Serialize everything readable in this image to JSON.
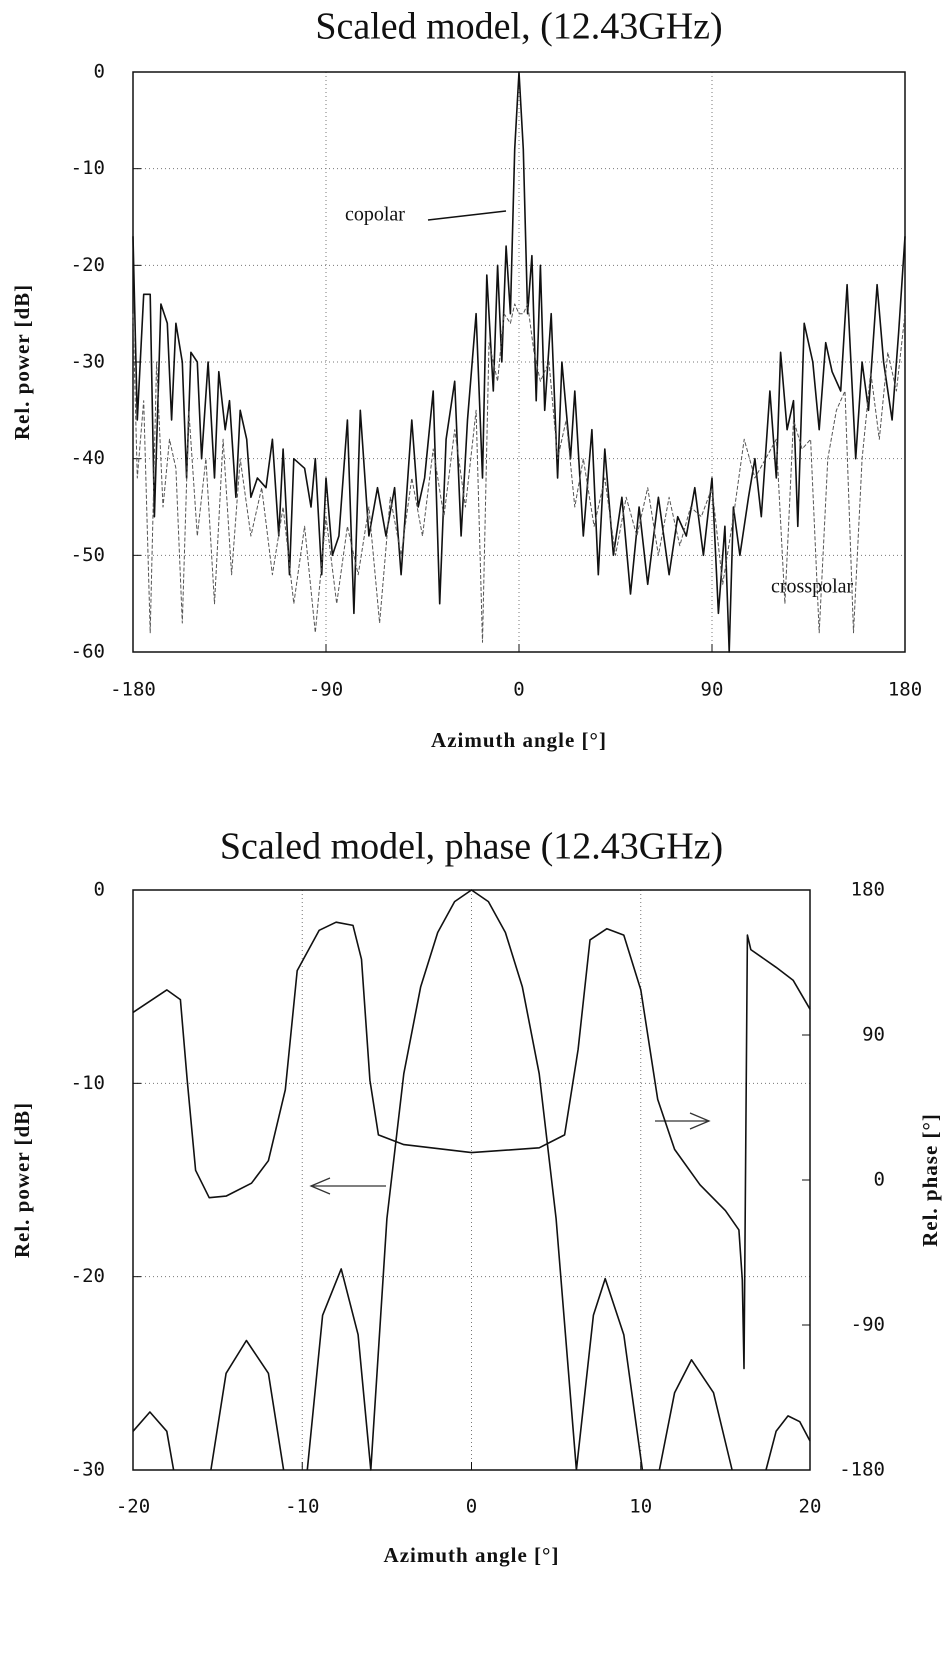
{
  "chart_data": [
    {
      "type": "line",
      "title": "Scaled model,  (12.43GHz)",
      "xlabel": "Azimuth angle [°]",
      "ylabel": "Rel. power [dB]",
      "xlim": [
        -180,
        180
      ],
      "xticks": [
        -180,
        -90,
        0,
        90,
        180
      ],
      "ylim": [
        -60,
        0
      ],
      "yticks": [
        0,
        -10,
        -20,
        -30,
        -40,
        -50,
        -60
      ],
      "grid": true,
      "series": [
        {
          "name": "copolar",
          "color": "#111111",
          "dashed": false,
          "x": [
            -180,
            -178,
            -175,
            -172,
            -170,
            -167,
            -164,
            -162,
            -160,
            -157,
            -155,
            -153,
            -150,
            -148,
            -145,
            -142,
            -140,
            -137,
            -135,
            -132,
            -130,
            -127,
            -125,
            -122,
            -118,
            -115,
            -112,
            -110,
            -107,
            -105,
            -100,
            -97,
            -95,
            -92,
            -90,
            -87,
            -84,
            -80,
            -77,
            -74,
            -70,
            -66,
            -62,
            -58,
            -55,
            -50,
            -47,
            -44,
            -40,
            -37,
            -34,
            -30,
            -27,
            -24,
            -20,
            -17,
            -15,
            -12,
            -10,
            -8,
            -6,
            -4,
            -2,
            0,
            2,
            4,
            6,
            8,
            10,
            12,
            15,
            18,
            20,
            24,
            26,
            30,
            34,
            37,
            40,
            44,
            48,
            52,
            56,
            60,
            65,
            70,
            74,
            78,
            82,
            86,
            90,
            93,
            96,
            98,
            100,
            103,
            107,
            110,
            113,
            117,
            120,
            122,
            125,
            128,
            130,
            133,
            137,
            140,
            143,
            146,
            150,
            153,
            157,
            160,
            163,
            167,
            170,
            174,
            177,
            180
          ],
          "values": [
            -17,
            -36,
            -23,
            -23,
            -46,
            -24,
            -26,
            -36,
            -26,
            -30,
            -42,
            -29,
            -30,
            -40,
            -30,
            -42,
            -31,
            -37,
            -34,
            -44,
            -35,
            -38,
            -44,
            -42,
            -43,
            -38,
            -48,
            -39,
            -52,
            -40,
            -41,
            -45,
            -40,
            -52,
            -42,
            -50,
            -48,
            -36,
            -56,
            -35,
            -48,
            -43,
            -48,
            -43,
            -52,
            -36,
            -45,
            -42,
            -33,
            -55,
            -38,
            -32,
            -48,
            -36,
            -25,
            -42,
            -21,
            -33,
            -20,
            -30,
            -18,
            -25,
            -8,
            0,
            -8,
            -25,
            -19,
            -34,
            -20,
            -35,
            -25,
            -42,
            -30,
            -40,
            -33,
            -48,
            -37,
            -52,
            -39,
            -50,
            -44,
            -54,
            -45,
            -53,
            -44,
            -52,
            -46,
            -48,
            -43,
            -50,
            -42,
            -56,
            -47,
            -60,
            -45,
            -50,
            -44,
            -40,
            -46,
            -33,
            -42,
            -29,
            -37,
            -34,
            -47,
            -26,
            -30,
            -37,
            -28,
            -31,
            -33,
            -22,
            -40,
            -30,
            -35,
            -22,
            -30,
            -36,
            -27,
            -17
          ]
        },
        {
          "name": "crosspolar",
          "color": "#555555",
          "dashed": true,
          "x": [
            -180,
            -178,
            -175,
            -172,
            -169,
            -166,
            -163,
            -160,
            -157,
            -154,
            -150,
            -146,
            -142,
            -138,
            -134,
            -130,
            -125,
            -120,
            -115,
            -110,
            -105,
            -100,
            -95,
            -90,
            -85,
            -80,
            -75,
            -70,
            -65,
            -60,
            -55,
            -50,
            -45,
            -40,
            -35,
            -30,
            -25,
            -20,
            -17,
            -14,
            -10,
            -7,
            -4,
            -2,
            0,
            2,
            4,
            7,
            10,
            14,
            18,
            22,
            26,
            30,
            35,
            40,
            45,
            50,
            55,
            60,
            65,
            70,
            75,
            80,
            85,
            90,
            95,
            100,
            105,
            110,
            115,
            120,
            124,
            128,
            132,
            136,
            140,
            144,
            148,
            152,
            156,
            160,
            164,
            168,
            172,
            176,
            180
          ],
          "values": [
            -25,
            -42,
            -34,
            -58,
            -30,
            -45,
            -38,
            -41,
            -57,
            -35,
            -48,
            -40,
            -55,
            -38,
            -52,
            -40,
            -48,
            -43,
            -52,
            -45,
            -55,
            -47,
            -58,
            -46,
            -55,
            -47,
            -52,
            -45,
            -57,
            -44,
            -50,
            -42,
            -48,
            -39,
            -46,
            -37,
            -45,
            -35,
            -59,
            -28,
            -32,
            -25,
            -26,
            -24,
            -25,
            -25,
            -24,
            -29,
            -32,
            -30,
            -40,
            -36,
            -45,
            -40,
            -47,
            -42,
            -50,
            -44,
            -48,
            -43,
            -50,
            -44,
            -49,
            -45,
            -46,
            -43,
            -53,
            -46,
            -38,
            -42,
            -40,
            -38,
            -55,
            -36,
            -39,
            -38,
            -58,
            -40,
            -35,
            -33,
            -58,
            -40,
            -31,
            -38,
            -29,
            -33,
            -25
          ]
        }
      ]
    },
    {
      "type": "line",
      "title": "Scaled model,  phase (12.43GHz)",
      "xlabel": "Azimuth angle [°]",
      "ylabel": "Rel. power [dB]",
      "y2label": "Rel. phase [°]",
      "xlim": [
        -20,
        20
      ],
      "xticks": [
        -20,
        -10,
        0,
        10,
        20
      ],
      "ylim": [
        -30,
        0
      ],
      "yticks": [
        0,
        -10,
        -20,
        -30
      ],
      "y2lim": [
        -180,
        180
      ],
      "y2ticks": [
        180,
        90,
        0,
        -90,
        -180
      ],
      "grid": true,
      "series": [
        {
          "name": "power",
          "color": "#111111",
          "dashed": false,
          "x": [
            -20,
            -19,
            -18,
            -17.6,
            -17,
            -15.4,
            -14.5,
            -13.3,
            -12,
            -11.1,
            -10.5,
            -9.7,
            -8.8,
            -7.7,
            -6.7,
            -5.95,
            -5,
            -4,
            -3,
            -2,
            -1,
            0,
            1,
            2,
            3,
            4,
            5,
            6.2,
            6.8,
            6.2,
            7.2,
            7.9,
            9,
            10.1,
            10.6,
            11.1,
            12,
            13,
            14.3,
            15.4,
            16.5,
            17.4,
            18,
            18.7,
            19.4,
            20
          ],
          "values": [
            -28,
            -27,
            -28,
            -30,
            null,
            -30,
            -25,
            -23.3,
            -25,
            -30,
            null,
            -30,
            -22,
            -19.6,
            -23,
            -30,
            -17,
            -9.5,
            -5,
            -2.2,
            -0.6,
            0,
            -0.6,
            -2.2,
            -5,
            -9.5,
            -17,
            -30,
            null,
            -30,
            -22,
            -20.1,
            -23,
            -30,
            null,
            -30,
            -26,
            -24.3,
            -26,
            -30,
            null,
            -30,
            -28,
            -27.2,
            -27.5,
            -28.5
          ]
        },
        {
          "name": "phase",
          "color": "#111111",
          "dashed": false,
          "axis": "y2",
          "x": [
            -20,
            -18,
            -17.2,
            -16.8,
            -16.3,
            -15.5,
            -14.5,
            -13,
            -12,
            -11,
            -10.3,
            -9,
            -8,
            -7,
            -6.5,
            -6,
            -5.5,
            -4,
            0,
            4,
            5.5,
            6.3,
            7,
            8,
            9,
            10,
            11,
            12,
            13.5,
            15,
            15.8,
            16,
            16.1,
            16.3,
            16.5,
            18,
            19,
            20
          ],
          "values": [
            104,
            118,
            112,
            62,
            6,
            -11,
            -10,
            -2,
            12,
            56,
            130,
            155,
            160,
            158,
            137,
            62,
            28,
            22,
            17,
            20,
            28,
            81,
            149,
            156,
            152,
            118,
            50,
            19,
            -3,
            -19,
            -31,
            -62,
            -117,
            152,
            143,
            132,
            124,
            106
          ]
        }
      ]
    }
  ]
}
